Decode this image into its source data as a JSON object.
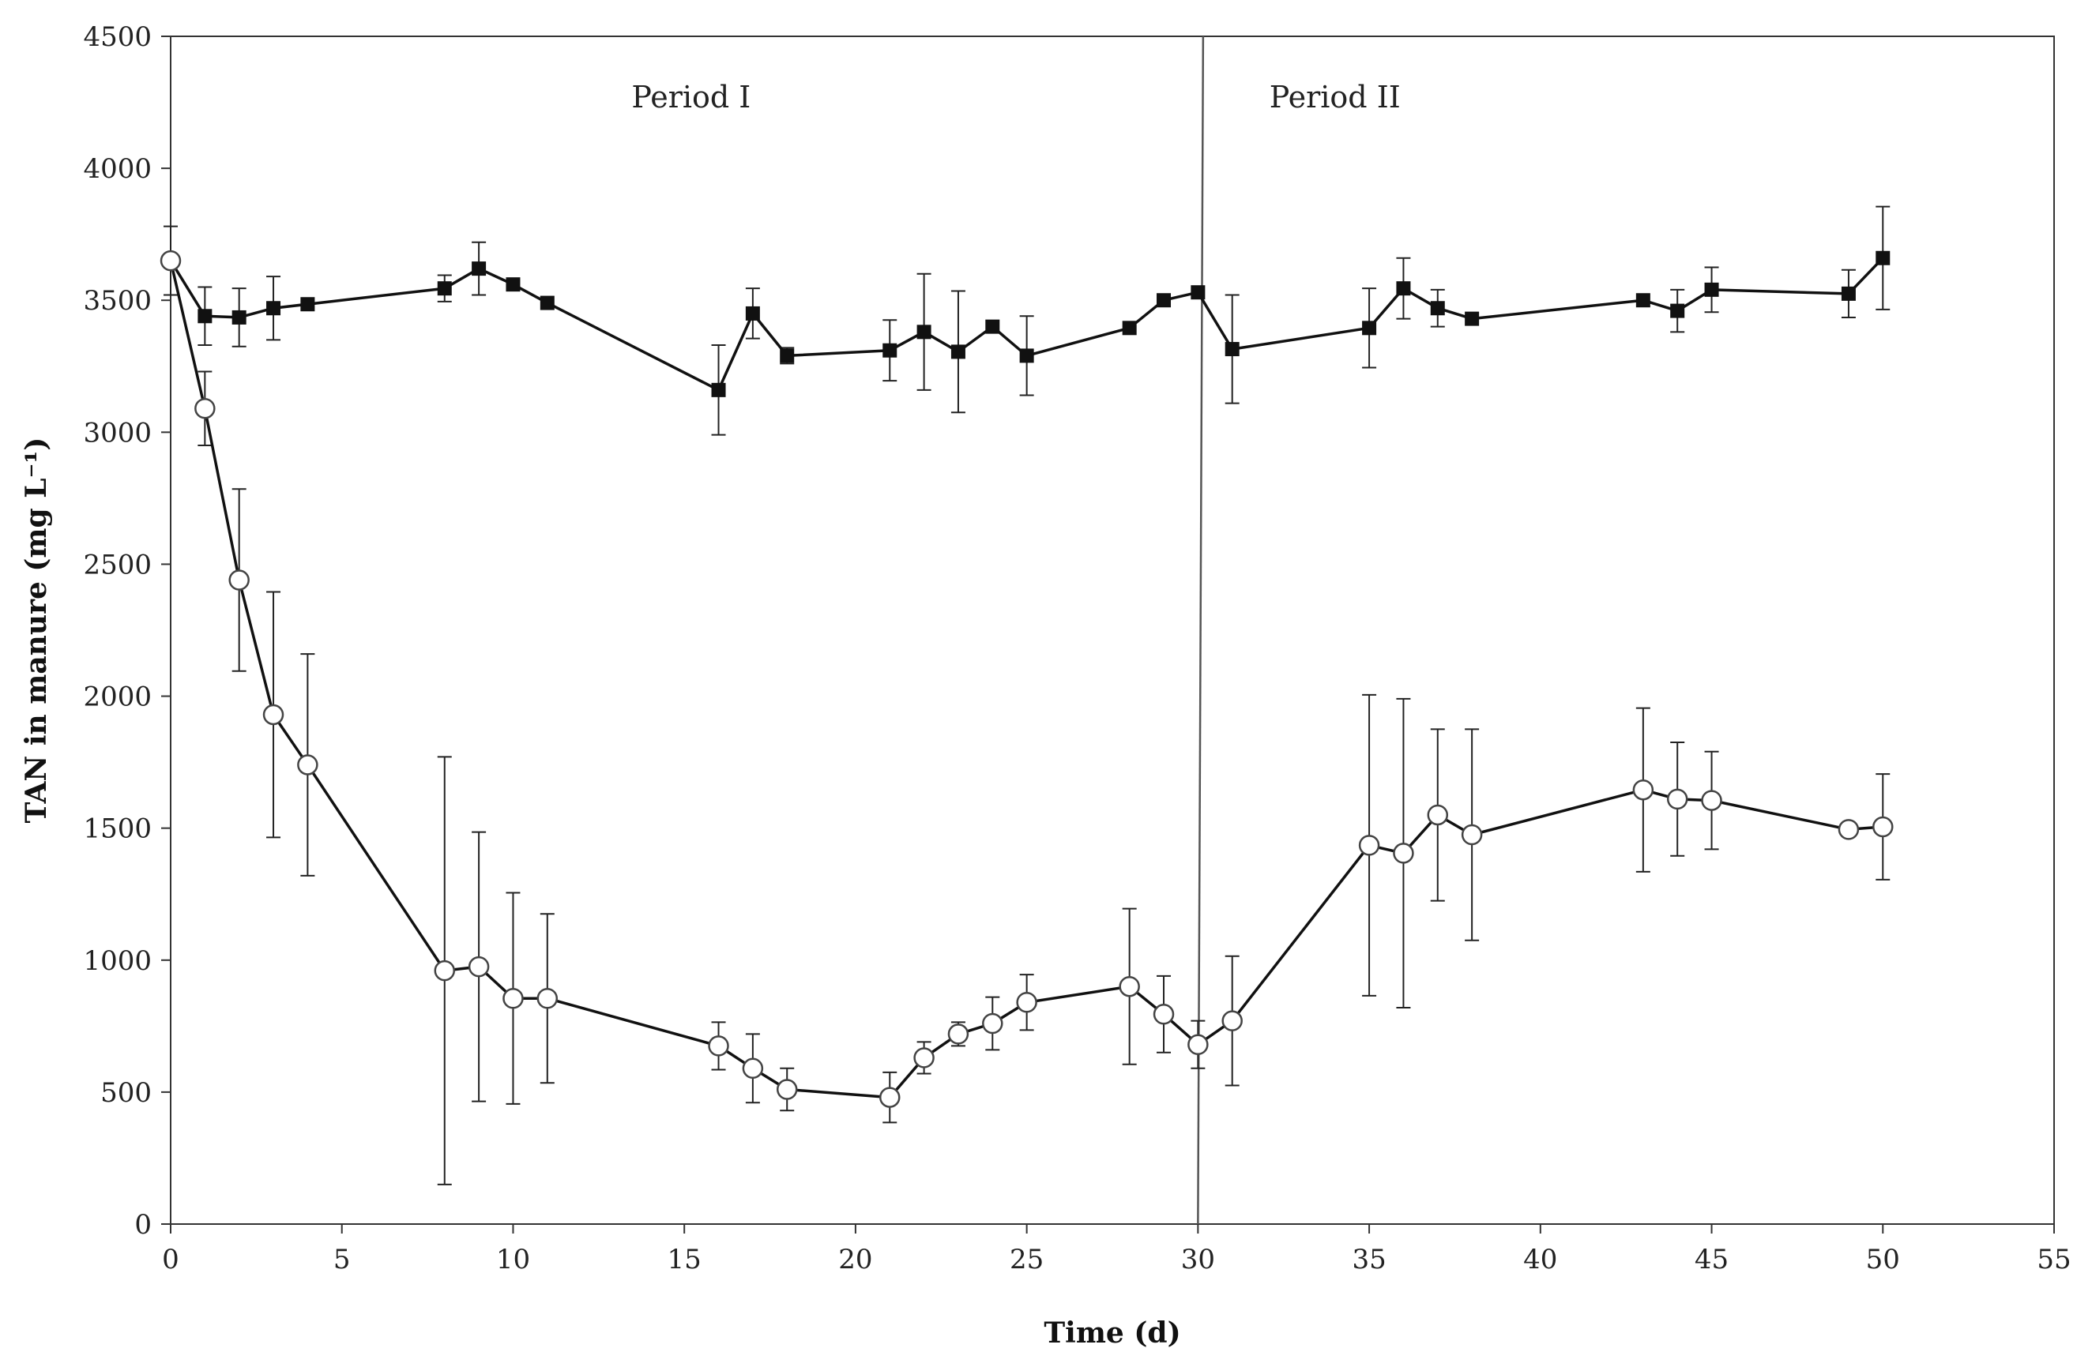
{
  "chart_data": {
    "type": "line",
    "title": "",
    "xlabel": "Time (d)",
    "ylabel": "TAN in manure (mg L⁻¹)",
    "xlim": [
      0,
      55
    ],
    "ylim": [
      0,
      4500
    ],
    "xticks": [
      0,
      5,
      10,
      15,
      20,
      25,
      30,
      35,
      40,
      45,
      50,
      55
    ],
    "yticks": [
      0,
      500,
      1000,
      1500,
      2000,
      2500,
      3000,
      3500,
      4000,
      4500
    ],
    "grid": false,
    "annotations": [
      {
        "text": "Period I",
        "x": 15.2,
        "y": 4230
      },
      {
        "text": "Period II",
        "x": 34.0,
        "y": 4230
      }
    ],
    "divider": {
      "x": 30,
      "x_top": 30.15
    },
    "series": [
      {
        "name": "filled squares",
        "marker": "square-filled",
        "x": [
          0,
          1,
          2,
          3,
          4,
          8,
          9,
          10,
          11,
          16,
          17,
          18,
          21,
          22,
          23,
          24,
          25,
          28,
          29,
          30,
          31,
          35,
          36,
          37,
          38,
          43,
          44,
          45,
          49,
          50
        ],
        "y": [
          3650,
          3440,
          3435,
          3470,
          3485,
          3545,
          3620,
          3560,
          3490,
          3160,
          3450,
          3290,
          3310,
          3380,
          3305,
          3400,
          3290,
          3395,
          3500,
          3530,
          3315,
          3395,
          3545,
          3470,
          3430,
          3500,
          3460,
          3540,
          3525,
          3660
        ],
        "err": [
          130,
          110,
          110,
          120,
          0,
          50,
          100,
          0,
          0,
          170,
          95,
          30,
          115,
          220,
          230,
          0,
          150,
          0,
          0,
          0,
          205,
          150,
          115,
          70,
          0,
          0,
          80,
          85,
          90,
          195
        ]
      },
      {
        "name": "open circles",
        "marker": "circle-open",
        "x": [
          0,
          1,
          2,
          3,
          4,
          8,
          9,
          10,
          11,
          16,
          17,
          18,
          21,
          22,
          23,
          24,
          25,
          28,
          29,
          30,
          31,
          35,
          36,
          37,
          38,
          43,
          44,
          45,
          49,
          50
        ],
        "y": [
          3650,
          3090,
          2440,
          1930,
          1740,
          960,
          975,
          855,
          855,
          675,
          590,
          510,
          480,
          630,
          720,
          760,
          840,
          900,
          795,
          680,
          770,
          1435,
          1405,
          1550,
          1475,
          1645,
          1610,
          1605,
          1495,
          1505
        ],
        "err": [
          0,
          140,
          345,
          465,
          420,
          810,
          510,
          400,
          320,
          90,
          130,
          80,
          95,
          60,
          45,
          100,
          105,
          295,
          145,
          90,
          245,
          570,
          585,
          325,
          400,
          310,
          215,
          185,
          0,
          200
        ]
      }
    ]
  }
}
